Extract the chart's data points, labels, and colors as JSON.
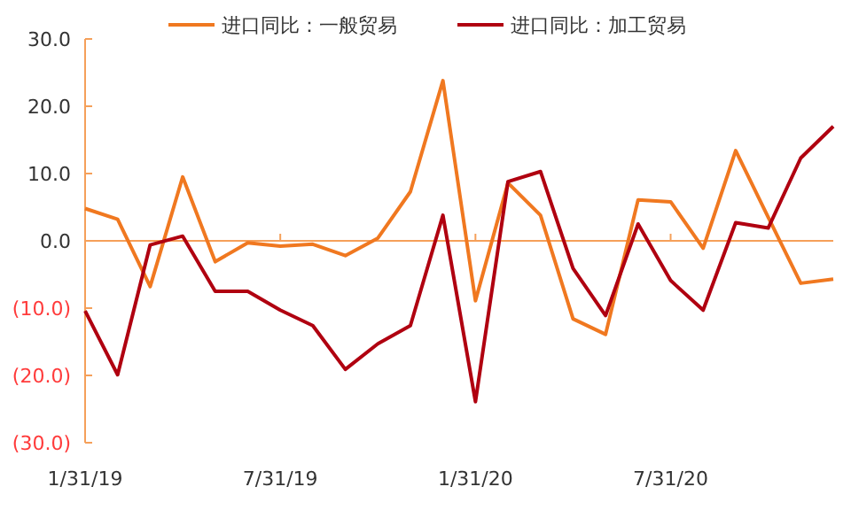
{
  "chart_data": {
    "type": "line",
    "categories": [
      "1/31/19",
      null,
      null,
      null,
      null,
      null,
      "7/31/19",
      null,
      null,
      null,
      null,
      null,
      "1/31/20",
      null,
      null,
      null,
      null,
      null,
      "7/31/20",
      null,
      null,
      null,
      null,
      null
    ],
    "series": [
      {
        "name": "进口同比：一般贸易",
        "color": "#f07820",
        "values": [
          4.8,
          3.2,
          -6.8,
          9.5,
          -3.1,
          -0.3,
          -0.8,
          -0.5,
          -2.2,
          0.4,
          7.3,
          23.8,
          -8.9,
          8.6,
          3.8,
          -11.6,
          -13.9,
          6.1,
          5.8,
          -1.1,
          13.4,
          3.5,
          -6.3,
          -5.7
        ]
      },
      {
        "name": "进口同比：加工贸易",
        "color": "#b00010",
        "values": [
          -10.4,
          -19.9,
          -0.6,
          0.7,
          -7.5,
          -7.5,
          -10.3,
          -12.6,
          -19.1,
          -15.3,
          -12.6,
          3.8,
          -23.9,
          8.8,
          10.3,
          -4.1,
          -11.1,
          2.5,
          -5.9,
          -10.3,
          2.7,
          1.9,
          12.3,
          17.0
        ]
      }
    ],
    "ylim": [
      -30,
      30
    ],
    "yticks": [
      {
        "value": -30,
        "label": "(30.0)"
      },
      {
        "value": -20,
        "label": "(20.0)"
      },
      {
        "value": -10,
        "label": "(10.0)"
      },
      {
        "value": 0,
        "label": "0.0"
      },
      {
        "value": 10,
        "label": "10.0"
      },
      {
        "value": 20,
        "label": "20.0"
      },
      {
        "value": 30,
        "label": "30.0"
      }
    ],
    "ref_lines": [
      {
        "axis": "y",
        "value": 0,
        "color": "#f5a05a"
      }
    ],
    "legend": "top",
    "grid": false,
    "marker": "none",
    "line_style": "solid"
  }
}
